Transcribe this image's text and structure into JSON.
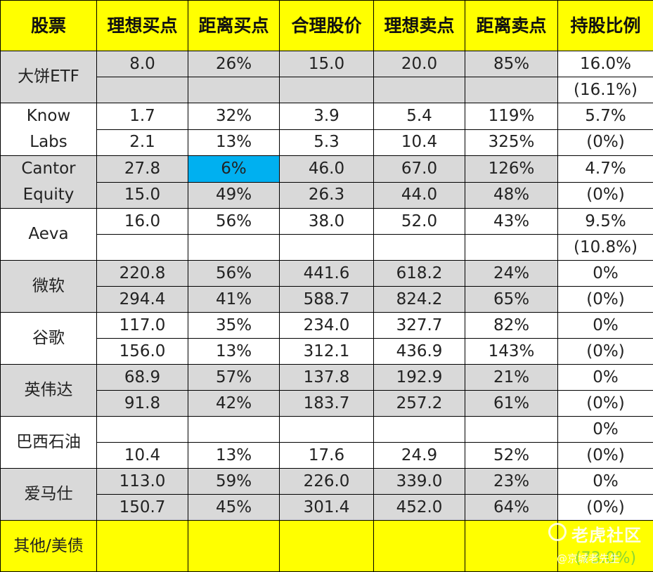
{
  "header": [
    "股票",
    "理想买点",
    "距离买点",
    "合理股价",
    "理想卖点",
    "距离卖点",
    "持股比例"
  ],
  "rows": [
    {
      "name": [
        "大饼ETF"
      ],
      "r1": [
        "8.0",
        "26%",
        "15.0",
        "20.0",
        "85%",
        "16.0%"
      ],
      "r2": [
        "",
        "",
        "",
        "",
        "",
        "(16.1%)"
      ]
    },
    {
      "name": [
        "Know",
        "Labs"
      ],
      "r1": [
        "1.7",
        "32%",
        "3.9",
        "5.4",
        "119%",
        "5.7%"
      ],
      "r2": [
        "2.1",
        "13%",
        "5.3",
        "10.4",
        "325%",
        "(0%)"
      ]
    },
    {
      "name": [
        "Cantor",
        "Equity"
      ],
      "r1": [
        "27.8",
        "6%",
        "46.0",
        "67.0",
        "126%",
        "4.7%"
      ],
      "r2": [
        "15.0",
        "49%",
        "26.3",
        "44.0",
        "48%",
        "(0%)"
      ]
    },
    {
      "name": [
        "Aeva"
      ],
      "r1": [
        "16.0",
        "56%",
        "38.0",
        "52.0",
        "43%",
        "9.5%"
      ],
      "r2": [
        "",
        "",
        "",
        "",
        "",
        "(10.8%)"
      ]
    },
    {
      "name": [
        "微软"
      ],
      "r1": [
        "220.8",
        "56%",
        "441.6",
        "618.2",
        "24%",
        "0%"
      ],
      "r2": [
        "294.4",
        "41%",
        "588.7",
        "824.2",
        "65%",
        "(0%)"
      ]
    },
    {
      "name": [
        "谷歌"
      ],
      "r1": [
        "117.0",
        "35%",
        "234.0",
        "327.7",
        "82%",
        "0%"
      ],
      "r2": [
        "156.0",
        "13%",
        "312.1",
        "436.9",
        "143%",
        "(0%)"
      ]
    },
    {
      "name": [
        "英伟达"
      ],
      "r1": [
        "68.9",
        "57%",
        "137.8",
        "192.9",
        "21%",
        "0%"
      ],
      "r2": [
        "91.8",
        "42%",
        "183.7",
        "257.2",
        "61%",
        "(0%)"
      ]
    },
    {
      "name": [
        "巴西石油"
      ],
      "r1": [
        "",
        "",
        "",
        "",
        "",
        "0%"
      ],
      "r2": [
        "10.4",
        "13%",
        "17.6",
        "24.9",
        "52%",
        "(0%)"
      ]
    },
    {
      "name": [
        "爱马仕"
      ],
      "r1": [
        "113.0",
        "59%",
        "226.0",
        "339.0",
        "23%",
        "0%"
      ],
      "r2": [
        "150.7",
        "45%",
        "301.4",
        "452.0",
        "64%",
        "(0%)"
      ]
    }
  ],
  "footer": {
    "name": "其他/美债",
    "holding_partial": "(73.0%)"
  },
  "watermark": {
    "brand": "老虎社区",
    "user": "@京城老先生"
  },
  "colors": {
    "header_bg": "#ffff00",
    "shade_bg": "#d9d9d9",
    "highlight_bg": "#00b0f0",
    "positive": "#2db55d",
    "negative": "#e03c3c"
  }
}
